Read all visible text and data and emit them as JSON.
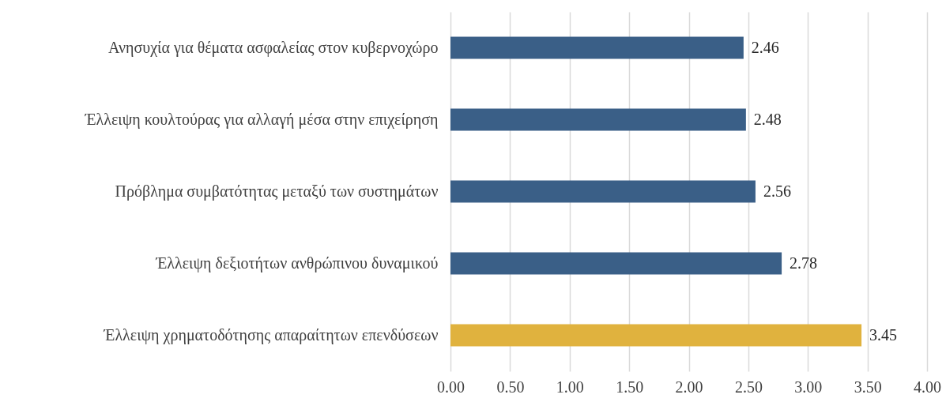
{
  "chart_data": {
    "type": "bar",
    "orientation": "horizontal",
    "categories": [
      "Ανησυχία για θέματα ασφαλείας στον κυβερνοχώρο",
      "Έλλειψη κουλτούρας για αλλαγή μέσα στην επιχείρηση",
      "Πρόβλημα συμβατότητας μεταξύ των συστημάτων",
      "Έλλειψη δεξιοτήτων ανθρώπινου δυναμικού",
      "Έλλειψη χρηματοδότησης απαραίτητων επενδύσεων"
    ],
    "values": [
      2.46,
      2.48,
      2.56,
      2.78,
      3.45
    ],
    "colors": [
      "#3a5f87",
      "#3a5f87",
      "#3a5f87",
      "#3a5f87",
      "#e0b23e"
    ],
    "xlim": [
      0,
      4
    ],
    "xticks": [
      {
        "value": 0,
        "label": "0.00"
      },
      {
        "value": 0.5,
        "label": "0.50"
      },
      {
        "value": 1,
        "label": "1.00"
      },
      {
        "value": 1.5,
        "label": "1.50"
      },
      {
        "value": 2,
        "label": "2.00"
      },
      {
        "value": 2.5,
        "label": "2.50"
      },
      {
        "value": 3,
        "label": "3.00"
      },
      {
        "value": 3.5,
        "label": "3.50"
      },
      {
        "value": 4,
        "label": "4.00"
      }
    ],
    "grid": "x",
    "data_labels": true
  }
}
